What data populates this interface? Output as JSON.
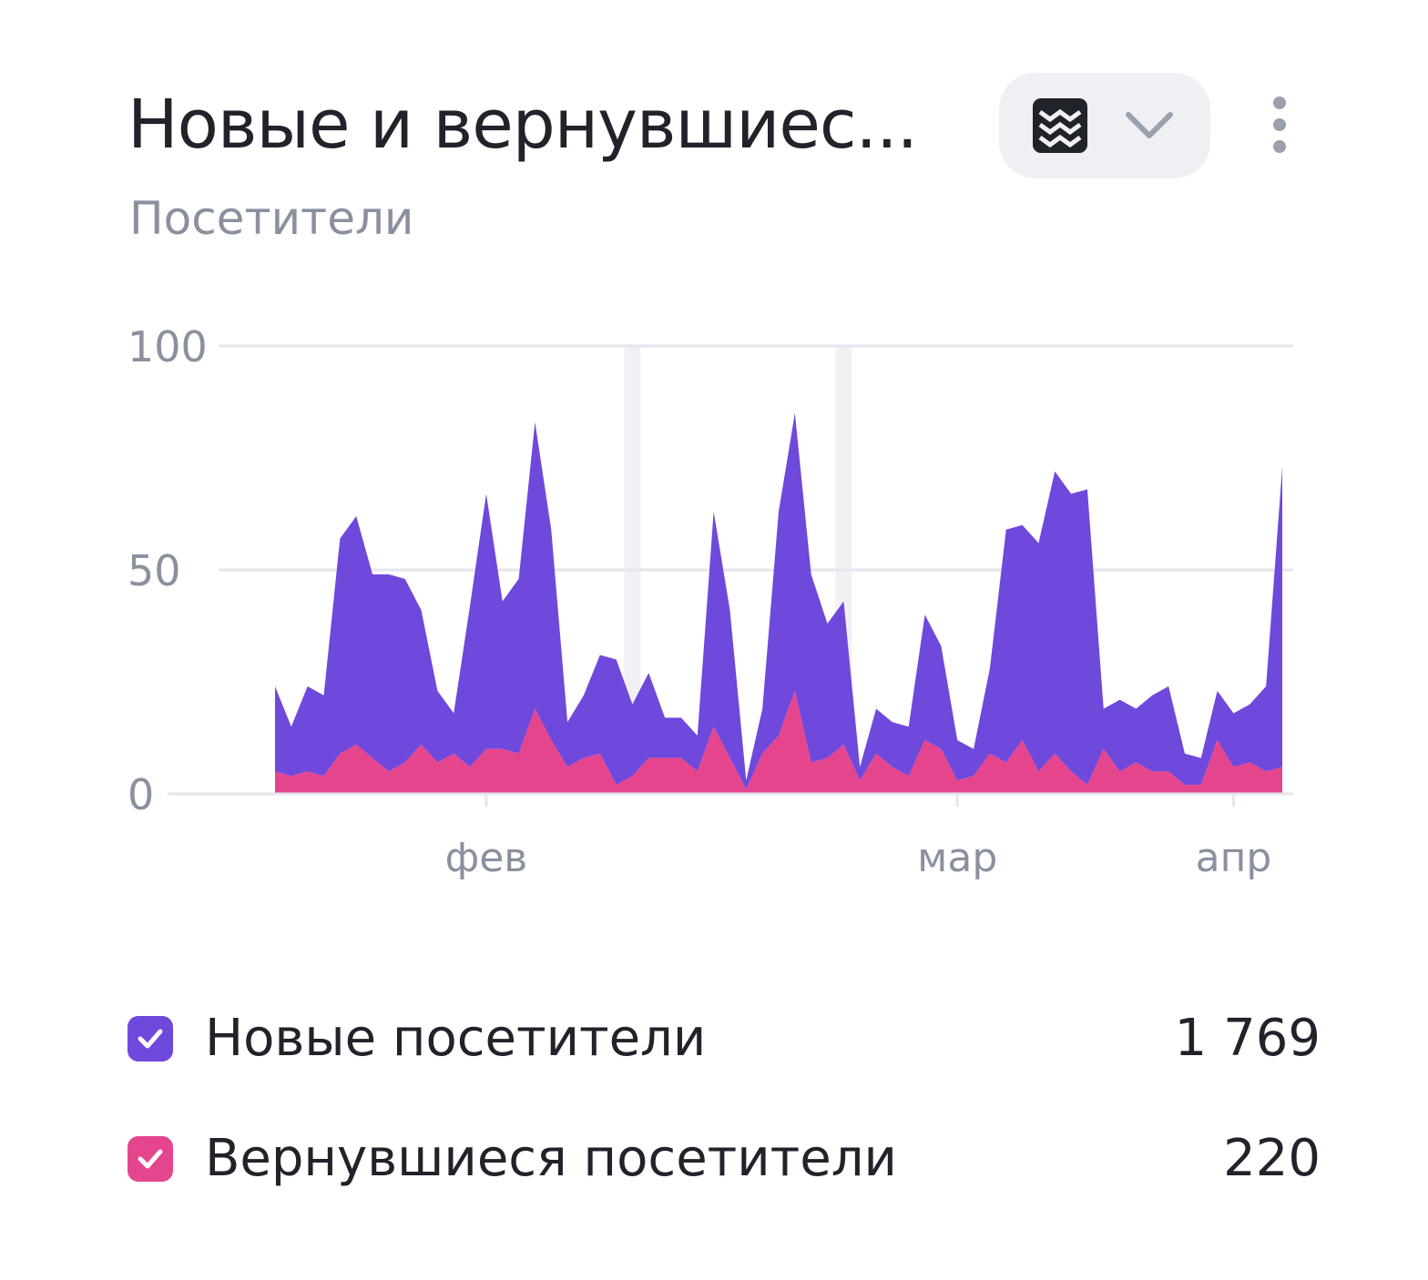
{
  "widget": {
    "title": "Новые и вернувшиес...",
    "subtitle": "Посетители",
    "chart_type_icon": "stacked-area-icon",
    "dropdown_icon": "chevron-down-icon",
    "menu_icon": "more-vertical-icon"
  },
  "colors": {
    "new": "#6f48dc",
    "returning": "#e5458d",
    "grid": "#e4e5ee",
    "weekend": "#f1f1f5",
    "axis_text": "#8a909e"
  },
  "legend": [
    {
      "label": "Новые посетители",
      "value": "1 769",
      "color": "#6f48dc",
      "checked": true
    },
    {
      "label": "Вернувшиеся посетители",
      "value": "220",
      "color": "#e5458d",
      "checked": true
    }
  ],
  "chart_data": {
    "type": "area",
    "stacked": true,
    "y_ticks": [
      "100",
      "50",
      "0"
    ],
    "ylim": [
      0,
      100
    ],
    "x_tick_labels": [
      "фев",
      "мар",
      "апр"
    ],
    "x_tick_day_index": [
      13,
      42,
      59
    ],
    "weekend_day_index": [
      22,
      35
    ],
    "series": [
      {
        "name": "Вернувшиеся посетители",
        "values": [
          5,
          4,
          5,
          4,
          9,
          11,
          8,
          5,
          7,
          11,
          7,
          9,
          6,
          10,
          10,
          9,
          19,
          12,
          6,
          8,
          9,
          2,
          4,
          8,
          8,
          8,
          5,
          15,
          8,
          1,
          9,
          13,
          23,
          7,
          8,
          11,
          3,
          9,
          6,
          4,
          12,
          10,
          3,
          4,
          9,
          7,
          12,
          5,
          9,
          5,
          2,
          10,
          5,
          7,
          5,
          5,
          2,
          2,
          12,
          6,
          7,
          5,
          6
        ]
      },
      {
        "name": "Новые посетители",
        "values": [
          19,
          11,
          19,
          18,
          48,
          51,
          41,
          44,
          41,
          30,
          16,
          9,
          36,
          57,
          33,
          39,
          64,
          47,
          10,
          14,
          22,
          28,
          16,
          19,
          9,
          9,
          8,
          48,
          33,
          2,
          10,
          50,
          62,
          42,
          30,
          32,
          3,
          10,
          10,
          11,
          28,
          23,
          9,
          6,
          19,
          52,
          48,
          51,
          63,
          62,
          66,
          9,
          16,
          12,
          17,
          19,
          7,
          6,
          11,
          12,
          13,
          19,
          67
        ]
      }
    ]
  }
}
